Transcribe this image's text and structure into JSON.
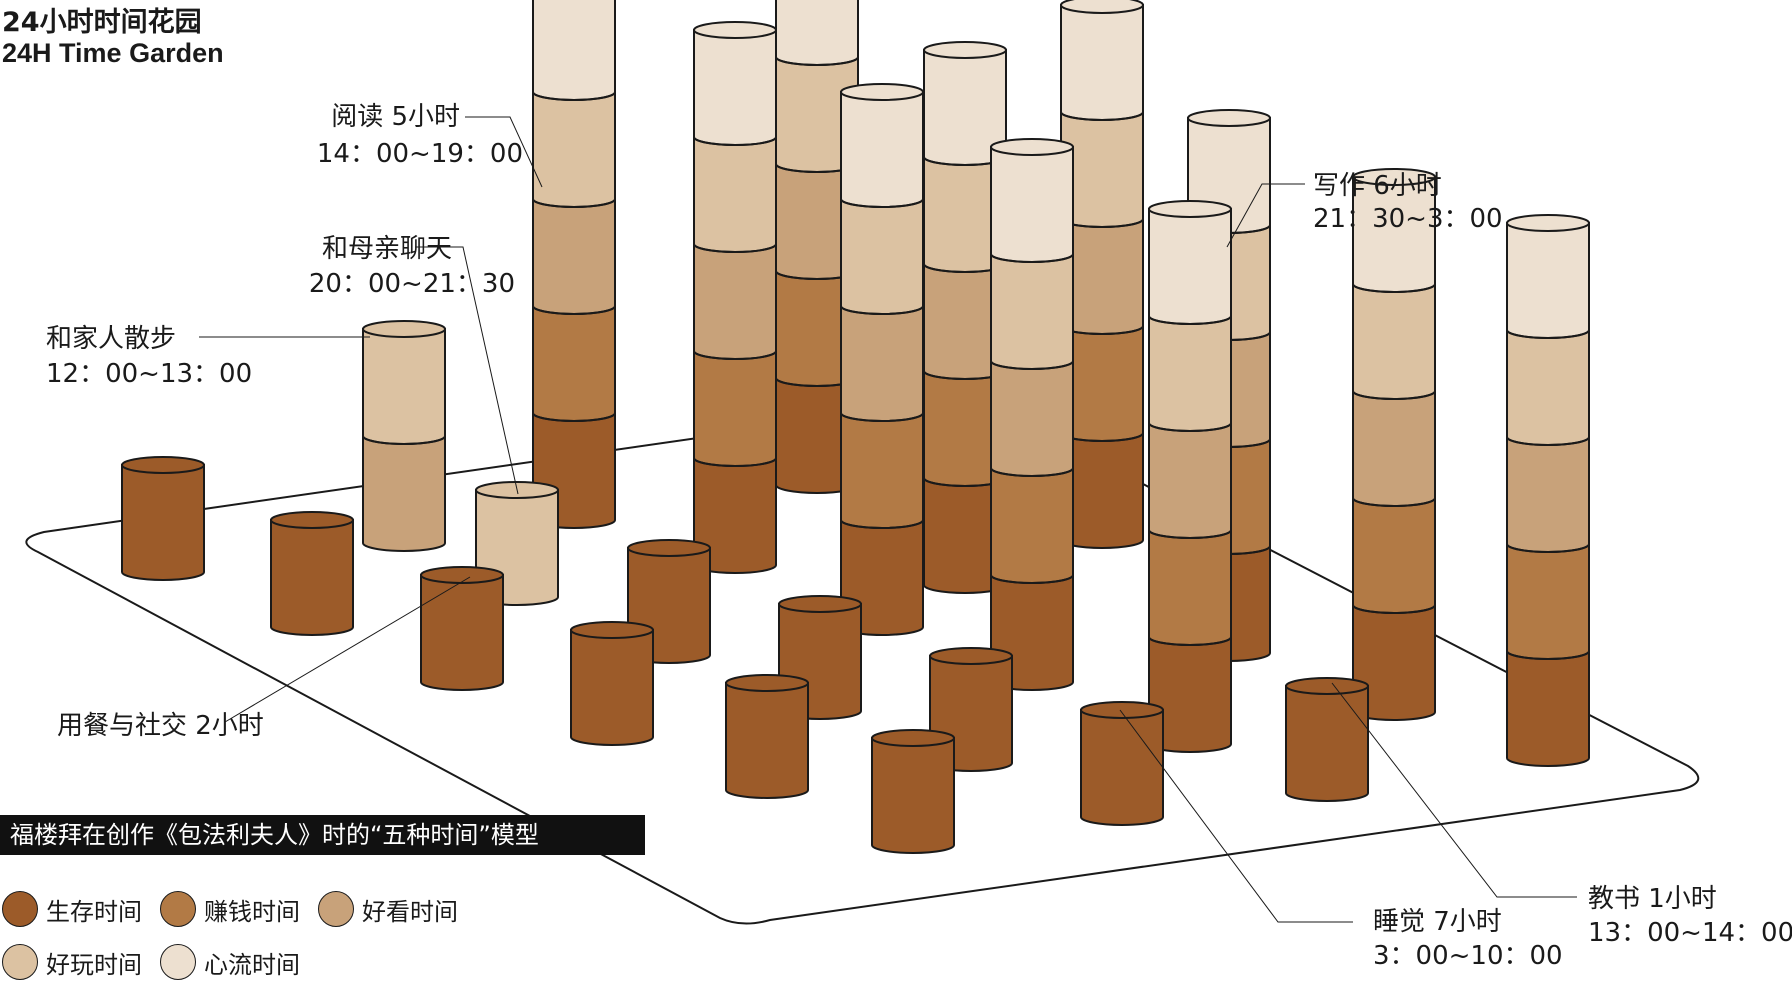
{
  "title_cn": "24小时时间花园",
  "title_en": "24H Time Garden",
  "caption": "福楼拜在创作《包法利夫人》时的“五种时间”模型",
  "colors": {
    "survival": "#9c5b29",
    "money": "#b27a45",
    "goodlook": "#c8a27a",
    "fun": "#dcc2a2",
    "flow": "#ede0d0"
  },
  "legend": [
    {
      "label": "生存时间",
      "color": "#9c5b29"
    },
    {
      "label": "赚钱时间",
      "color": "#b27a45"
    },
    {
      "label": "好看时间",
      "color": "#c8a27a"
    },
    {
      "label": "好玩时间",
      "color": "#dcc2a2"
    },
    {
      "label": "心流时间",
      "color": "#ede0d0"
    }
  ],
  "annotations": {
    "reading": {
      "line1": "阅读 5小时",
      "line2": "14：00~19：00"
    },
    "mother": {
      "line1": "和母亲聊天",
      "line2": "20：00~21：30"
    },
    "walk": {
      "line1": "和家人散步",
      "line2": "12：00~13：00"
    },
    "meal": {
      "line1": "用餐与社交 2小时"
    },
    "writing": {
      "line1": "写作 6小时",
      "line2": "21：30~3：00"
    },
    "sleep": {
      "line1": "睡觉 7小时",
      "line2": "3：00~10：00"
    },
    "teach": {
      "line1": "教书 1小时",
      "line2": "13：00~14：00"
    }
  }
}
